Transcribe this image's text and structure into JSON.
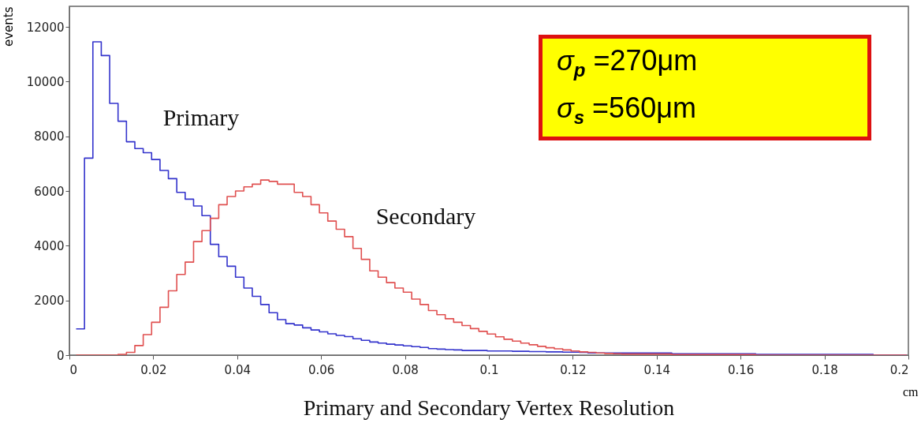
{
  "chart_data": {
    "type": "histogram",
    "title": "Primary and Secondary Vertex Resolution",
    "xlabel": "cm",
    "ylabel": "events",
    "annotations": [
      "σ$_{p}$ =270μm",
      "σ$_{s}$ =560μm"
    ],
    "bins": [
      0.0016,
      0.0036,
      0.0056,
      0.0076,
      0.0096,
      0.0116,
      0.0136,
      0.0156,
      0.0176,
      0.0196,
      0.0216,
      0.0236,
      0.0256,
      0.0276,
      0.0296,
      0.0316,
      0.0336,
      0.0356,
      0.0376,
      0.0396,
      0.0416,
      0.0436,
      0.0456,
      0.0476,
      0.0496,
      0.0516,
      0.0536,
      0.0556,
      0.0576,
      0.0596,
      0.0616,
      0.0636,
      0.0656,
      0.0676,
      0.0696,
      0.0716,
      0.0736,
      0.0756,
      0.0776,
      0.0796,
      0.0816,
      0.0836,
      0.0856,
      0.0876,
      0.0896,
      0.0916,
      0.0936,
      0.0956,
      0.0976,
      0.0996,
      0.1016,
      0.1036,
      0.1056,
      0.1076,
      0.1096,
      0.1116,
      0.1136,
      0.1156,
      0.1176,
      0.1196,
      0.1216,
      0.1236,
      0.1256,
      0.1276,
      0.1296,
      0.1316,
      0.1336,
      0.1356,
      0.1376,
      0.1396,
      0.1416,
      0.1436,
      0.1456,
      0.1476,
      0.1496,
      0.1516,
      0.1536,
      0.1556,
      0.1576,
      0.1596,
      0.1616,
      0.1636,
      0.1656,
      0.1676,
      0.1696,
      0.1716,
      0.1736,
      0.1756,
      0.1776,
      0.1796,
      0.1816,
      0.1836,
      0.1856,
      0.1876,
      0.1896,
      0.1916,
      0.1936,
      0.1956,
      0.1976,
      0.1996
    ],
    "series": [
      {
        "name": "Primary",
        "color": "#3333cc",
        "values": [
          960,
          7200,
          11450,
          10950,
          9200,
          8550,
          7800,
          7550,
          7400,
          7150,
          6750,
          6450,
          5950,
          5700,
          5450,
          5100,
          4050,
          3600,
          3250,
          2850,
          2450,
          2150,
          1850,
          1550,
          1300,
          1150,
          1100,
          1000,
          920,
          850,
          780,
          720,
          680,
          600,
          540,
          480,
          440,
          400,
          370,
          340,
          310,
          280,
          240,
          220,
          200,
          190,
          170,
          170,
          170,
          150,
          150,
          150,
          140,
          140,
          130,
          130,
          120,
          120,
          110,
          110,
          100,
          80,
          80,
          80,
          80,
          80,
          80,
          80,
          80,
          80,
          80,
          50,
          50,
          50,
          50,
          50,
          50,
          50,
          50,
          50,
          50,
          30,
          30,
          30,
          30,
          30,
          30,
          30,
          30,
          30,
          30,
          30,
          30,
          30,
          30,
          0,
          0,
          0,
          0
        ]
      },
      {
        "name": "Secondary",
        "color": "#e05050",
        "values": [
          0,
          0,
          0,
          0,
          0,
          30,
          100,
          350,
          750,
          1200,
          1750,
          2350,
          2950,
          3400,
          4150,
          4550,
          5000,
          5500,
          5800,
          6000,
          6150,
          6250,
          6400,
          6350,
          6250,
          6250,
          5950,
          5800,
          5500,
          5200,
          4900,
          4600,
          4330,
          3900,
          3500,
          3080,
          2850,
          2650,
          2450,
          2300,
          2050,
          1850,
          1630,
          1480,
          1330,
          1200,
          1080,
          970,
          870,
          770,
          670,
          580,
          510,
          440,
          380,
          320,
          270,
          230,
          190,
          150,
          120,
          100,
          80,
          60,
          50,
          40,
          40,
          40,
          40,
          40,
          40,
          20,
          20,
          20,
          20,
          20,
          20,
          20,
          20,
          20,
          20,
          0,
          0,
          0,
          0,
          0,
          0,
          0,
          0,
          0,
          0,
          0,
          0,
          0,
          0,
          0,
          0,
          0,
          0
        ]
      }
    ],
    "xlim": [
      0,
      0.2
    ],
    "xticks": [
      0,
      0.02,
      0.04,
      0.06,
      0.08,
      0.1,
      0.12,
      0.14,
      0.16,
      0.18,
      0.2
    ],
    "ylim": [
      0,
      12750
    ],
    "yticks": [
      0,
      2000,
      4000,
      6000,
      8000,
      10000,
      12000
    ]
  }
}
